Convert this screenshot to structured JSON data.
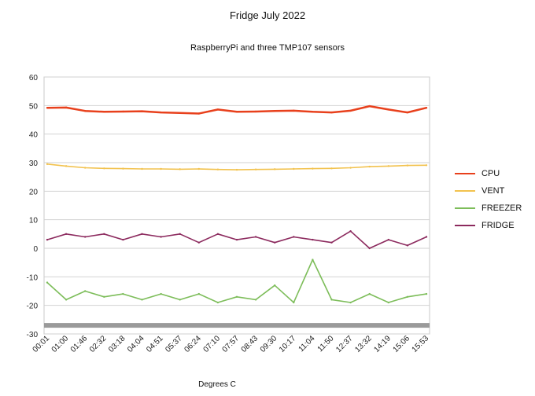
{
  "chart_data": {
    "type": "line",
    "title": "Fridge July 2022",
    "subtitle": "RaspberryPi and three TMP107 sensors",
    "xlabel": "Degrees C",
    "ylabel": "",
    "ylim": [
      -30,
      60
    ],
    "yticks": [
      -30,
      -20,
      -10,
      0,
      10,
      20,
      30,
      40,
      50,
      60
    ],
    "grid": true,
    "legend_position": "right",
    "categories": [
      "00:01",
      "01:00",
      "01:46",
      "02:32",
      "03:18",
      "04:04",
      "04:51",
      "05:37",
      "06:24",
      "07:10",
      "07:57",
      "08:43",
      "09:30",
      "10:17",
      "11:04",
      "11:50",
      "12:37",
      "13:32",
      "14:19",
      "15:06",
      "15:53"
    ],
    "series": [
      {
        "name": "CPU",
        "color": "#e8401c",
        "values": [
          49.2,
          49.3,
          48.1,
          47.8,
          47.9,
          48.0,
          47.6,
          47.4,
          47.2,
          48.6,
          47.8,
          47.9,
          48.1,
          48.2,
          47.8,
          47.6,
          48.2,
          49.8,
          48.6,
          47.6,
          49.2
        ]
      },
      {
        "name": "VENT",
        "color": "#f2c24e",
        "values": [
          29.5,
          28.8,
          28.2,
          28.0,
          27.9,
          27.8,
          27.8,
          27.7,
          27.8,
          27.6,
          27.5,
          27.6,
          27.7,
          27.8,
          27.9,
          28.0,
          28.2,
          28.6,
          28.8,
          29.0,
          29.1
        ]
      },
      {
        "name": "FREEZER",
        "color": "#7dbd5a",
        "values": [
          -12,
          -18,
          -15,
          -17,
          -16,
          -18,
          -16,
          -18,
          -16,
          -19,
          -17,
          -18,
          -13,
          -19,
          -4,
          -18,
          -19,
          -16,
          -19,
          -17,
          -16
        ]
      },
      {
        "name": "FRIDGE",
        "color": "#8c2a5e",
        "values": [
          3,
          5,
          4,
          5,
          3,
          5,
          4,
          5,
          2,
          5,
          3,
          4,
          2,
          4,
          3,
          2,
          6,
          0,
          3,
          1,
          4
        ]
      }
    ],
    "reference_band": {
      "value": -27,
      "color": "#9a9a9a"
    }
  }
}
